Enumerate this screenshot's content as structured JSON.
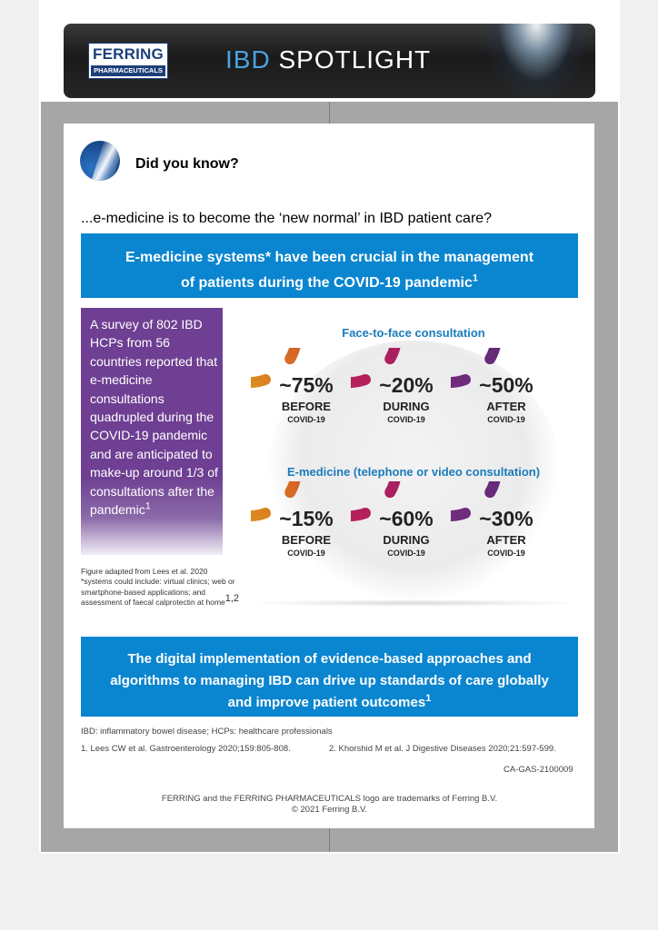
{
  "header": {
    "logo_main": "FERRING",
    "logo_sub": "PHARMACEUTICALS",
    "title_prefix": "IBD",
    "title_suffix": "SPOTLIGHT"
  },
  "intro": {
    "did_you_know": "Did you know?",
    "question": "...e-medicine is to become the ‘new normal’ in IBD patient care?"
  },
  "headline": {
    "line1": "E-medicine systems* have been crucial in the management",
    "line2": "of patients during the COVID-19 pandemic",
    "sup": "1"
  },
  "survey_text": {
    "body": "A survey of 802 IBD HCPs from 56 countries reported that e-medicine consultations quadrupled during the COVID-19 pandemic and are anticipated to make-up around 1/3 of consultations after the pandemic",
    "sup": "1"
  },
  "figure_note": {
    "line1": "Figure adapted from Lees et al. 2020",
    "line2": "*systems could include: virtual clinics; web or smartphone-based applications; and assessment of faecal calprotectin at home",
    "sup": "1,2"
  },
  "consultations": {
    "face_to_face": {
      "title": "Face-to-face consultation",
      "items": [
        {
          "pct": "~75%",
          "when": "BEFORE",
          "covid": "COVID-19",
          "value": 75
        },
        {
          "pct": "~20%",
          "when": "DURING",
          "covid": "COVID-19",
          "value": 20
        },
        {
          "pct": "~50%",
          "when": "AFTER",
          "covid": "COVID-19",
          "value": 50
        }
      ]
    },
    "e_medicine": {
      "title": "E-medicine (telephone or video consultation)",
      "items": [
        {
          "pct": "~15%",
          "when": "BEFORE",
          "covid": "COVID-19",
          "value": 15
        },
        {
          "pct": "~60%",
          "when": "DURING",
          "covid": "COVID-19",
          "value": 60
        },
        {
          "pct": "~30%",
          "when": "AFTER",
          "covid": "COVID-19",
          "value": 30
        }
      ]
    },
    "colors": {
      "before": [
        "#e1a21b",
        "#d0452c"
      ],
      "during": [
        "#c02256",
        "#9c1f63"
      ],
      "after": [
        "#7a2c7e",
        "#5a2a76"
      ]
    }
  },
  "conclusion": {
    "line1": "The digital implementation of evidence-based approaches and",
    "line2": "algorithms to managing IBD can drive up standards of care globally",
    "line3": "and improve patient outcomes",
    "sup": "1"
  },
  "footer": {
    "abbreviations": "IBD: inflammatory bowel disease; HCPs: healthcare professionals",
    "ref1": "1. Lees CW et al. Gastroenterology  2020;159:805-808.",
    "ref2": "2. Khorshid M et al. J Digestive Diseases 2020;21:597-599.",
    "code": "CA-GAS-2100009",
    "trademark": "FERRING and the FERRING PHARMACEUTICALS logo are trademarks of Ferring B.V.",
    "copyright": "© 2021 Ferring B.V."
  },
  "accent_colors": {
    "blue_box": "#0a85cf",
    "purple_box": "#6e3f92",
    "section_title": "#1a7bbd"
  }
}
